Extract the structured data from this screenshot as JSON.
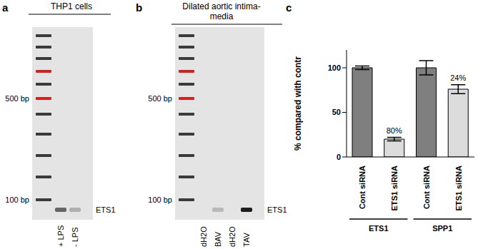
{
  "gels": [
    {
      "panel_label": "a",
      "title": "THP1 cells",
      "ladder_labels": [
        {
          "value": 500,
          "label": "500 bp"
        },
        {
          "value": 100,
          "label": "100 bp"
        }
      ],
      "lanes": [
        "+ LPS",
        "- LPS"
      ],
      "band_intensity": [
        0.6,
        0.25
      ],
      "band_label": "ETS1"
    },
    {
      "panel_label": "b",
      "title": "Dilated aortic intima-media",
      "ladder_labels": [
        {
          "value": 500,
          "label": "500 bp"
        },
        {
          "value": 100,
          "label": "100 bp"
        }
      ],
      "lanes": [
        "dH2O",
        "BAV",
        "dH2O",
        "TAV"
      ],
      "band_intensity": [
        0,
        0.2,
        0,
        0.95
      ],
      "band_label": "ETS1"
    }
  ],
  "chart_data": {
    "panel_label": "c",
    "type": "bar",
    "y_label": "% compared with contr",
    "categories": [
      "Cont siRNA",
      "ETS1 siRNA",
      "Cont siRNA",
      "ETS1 siRNA"
    ],
    "values": [
      100,
      20,
      100,
      76
    ],
    "errors": [
      2,
      2,
      8,
      5
    ],
    "colors": [
      "#7f7f7f",
      "#dcdcdc",
      "#7f7f7f",
      "#dcdcdc"
    ],
    "ylim": [
      0,
      120
    ],
    "yticks": [
      0,
      50,
      100
    ],
    "annotations": [
      {
        "index": 1,
        "text": "80%"
      },
      {
        "index": 3,
        "text": "24%"
      }
    ],
    "groups": [
      {
        "label": "ETS1",
        "span": [
          0,
          1
        ]
      },
      {
        "label": "SPP1",
        "span": [
          2,
          3
        ]
      }
    ]
  }
}
